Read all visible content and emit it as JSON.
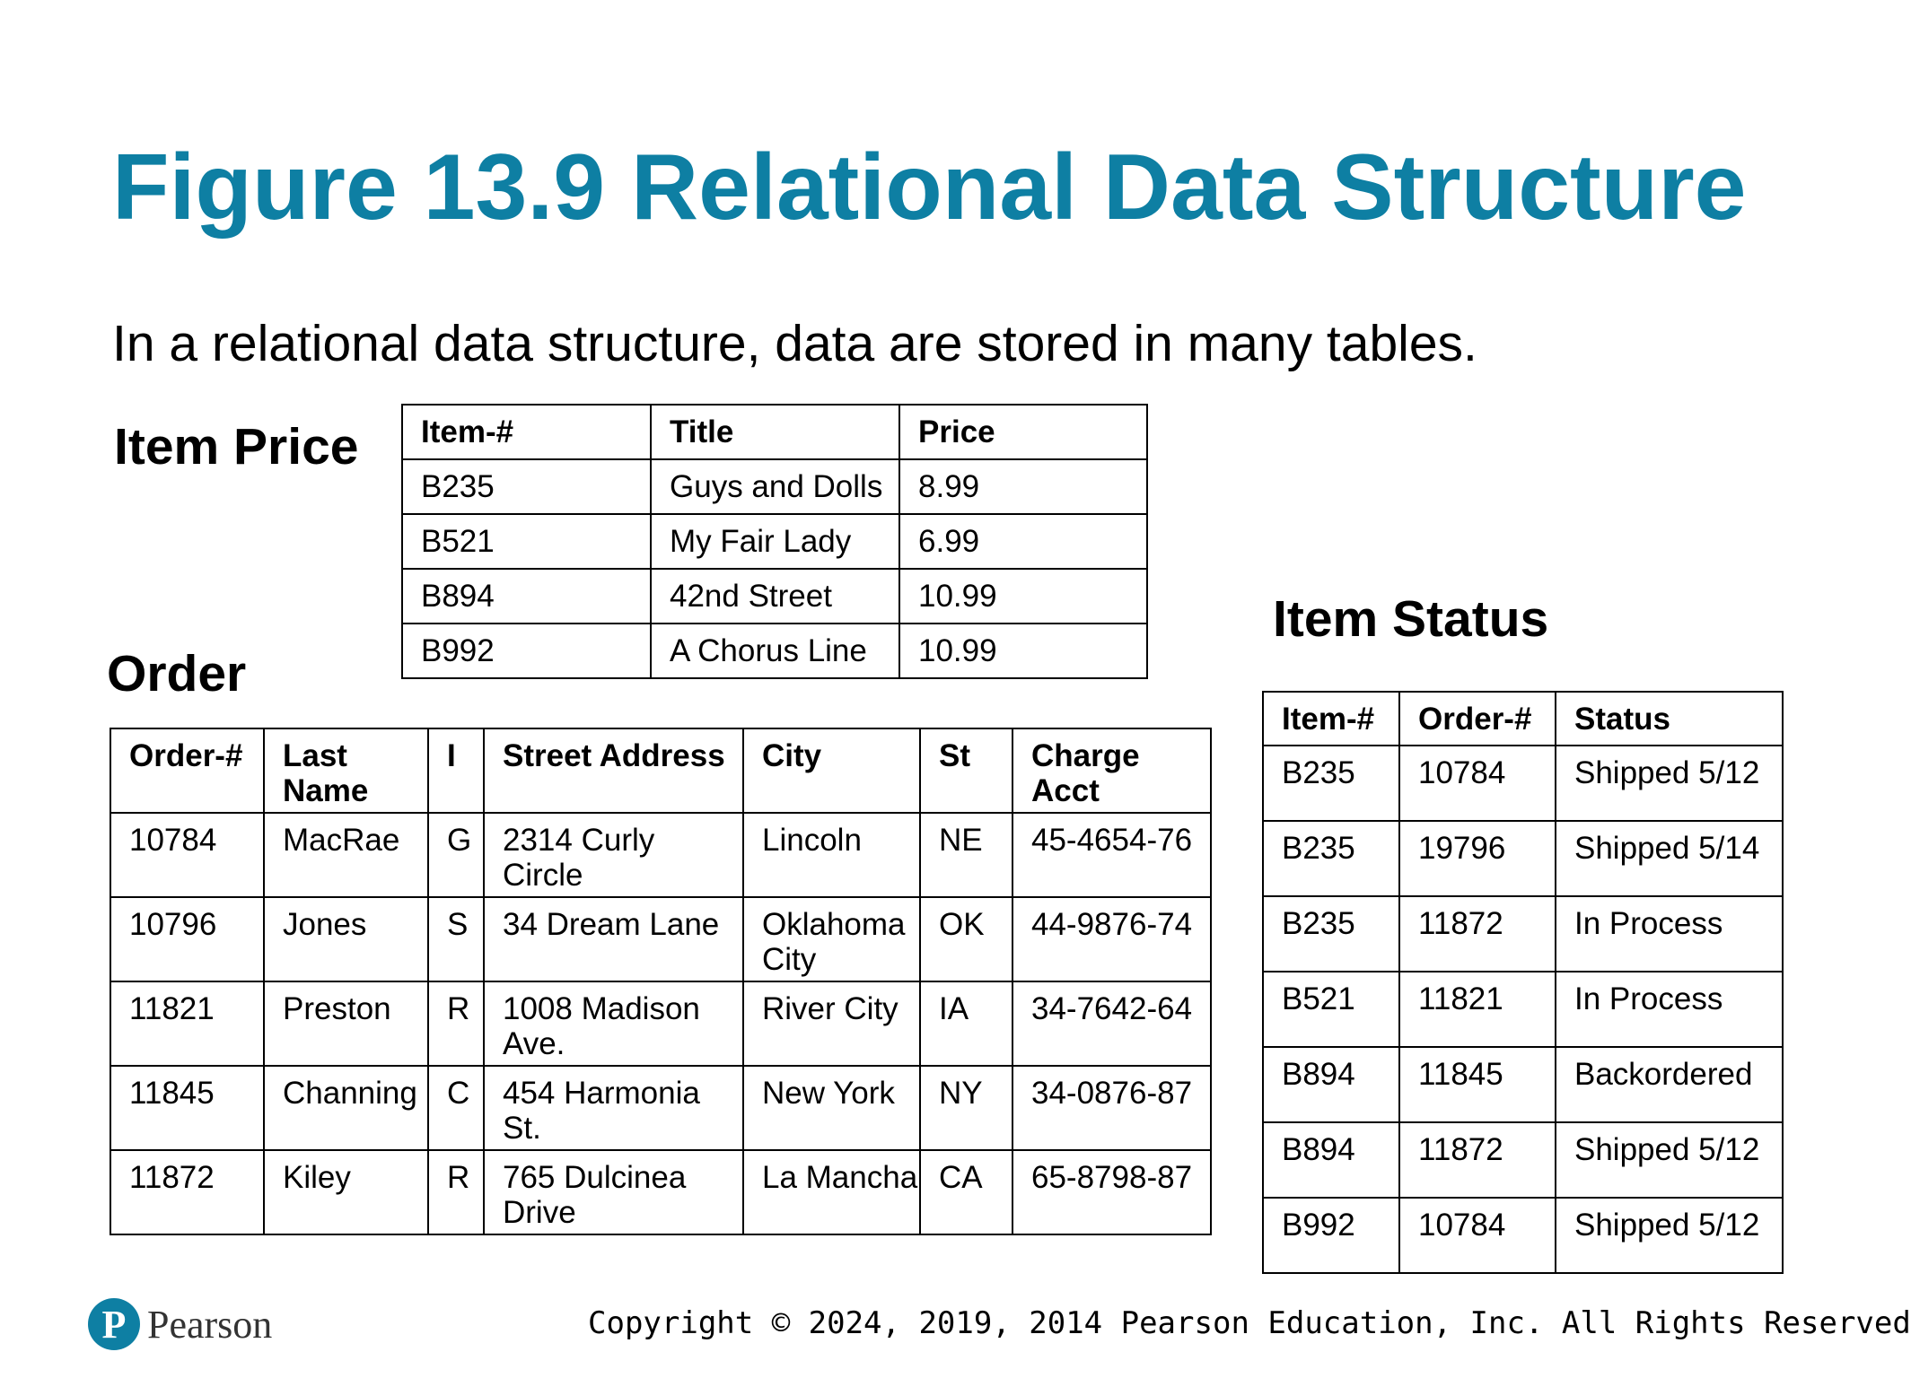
{
  "title": "Figure 13.9 Relational Data Structure",
  "subtitle": "In a relational data structure, data are stored in many tables.",
  "item_price": {
    "label": "Item Price",
    "headers": [
      "Item-#",
      "Title",
      "Price"
    ],
    "rows": [
      [
        "B235",
        "Guys and Dolls",
        "8.99"
      ],
      [
        "B521",
        "My Fair Lady",
        "6.99"
      ],
      [
        "B894",
        "42nd Street",
        "10.99"
      ],
      [
        "B992",
        "A Chorus Line",
        "10.99"
      ]
    ]
  },
  "order": {
    "label": "Order",
    "headers": [
      "Order-#",
      "Last Name",
      "I",
      "Street Address",
      "City",
      "St",
      "Charge Acct"
    ],
    "rows": [
      [
        "10784",
        "MacRae",
        "G",
        "2314 Curly Circle",
        "Lincoln",
        "NE",
        "45-4654-76"
      ],
      [
        "10796",
        "Jones",
        "S",
        "34 Dream Lane",
        "Oklahoma City",
        "OK",
        "44-9876-74"
      ],
      [
        "11821",
        "Preston",
        "R",
        "1008 Madison Ave.",
        "River City",
        "IA",
        "34-7642-64"
      ],
      [
        "11845",
        "Channing",
        "C",
        "454 Harmonia St.",
        "New York",
        "NY",
        "34-0876-87"
      ],
      [
        "11872",
        "Kiley",
        "R",
        "765 Dulcinea Drive",
        "La Mancha",
        "CA",
        "65-8798-87"
      ]
    ]
  },
  "item_status": {
    "label": "Item Status",
    "headers": [
      "Item-#",
      "Order-#",
      "Status"
    ],
    "rows": [
      [
        "B235",
        "10784",
        "Shipped 5/12"
      ],
      [
        "B235",
        "19796",
        "Shipped 5/14"
      ],
      [
        "B235",
        "11872",
        "In Process"
      ],
      [
        "B521",
        "11821",
        "In Process"
      ],
      [
        "B894",
        "11845",
        "Backordered"
      ],
      [
        "B894",
        "11872",
        "Shipped 5/12"
      ],
      [
        "B992",
        "10784",
        "Shipped 5/12"
      ]
    ]
  },
  "footer": {
    "logo_letter": "P",
    "logo_text": "Pearson",
    "copyright": "Copyright © 2024, 2019, 2014 Pearson Education, Inc. All Rights Reserved"
  },
  "colors": {
    "title": "#0e7fa3",
    "logo": "#0e7fa3"
  }
}
